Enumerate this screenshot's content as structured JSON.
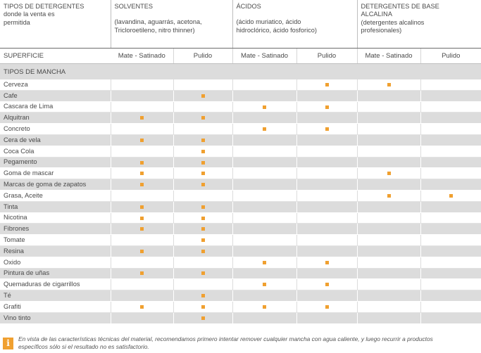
{
  "header": {
    "col0": [
      "TIPOS DE DETERGENTES",
      "donde la venta es",
      "permitida"
    ],
    "solventes": [
      "SOLVENTES",
      "",
      "(lavandina, aguarrás, acetona,",
      "Tricloroetileno, nitro thinner)"
    ],
    "acidos": [
      "ÁCIDOS",
      "",
      "(ácido muriatico, ácido",
      "hidroclórico, ácido fosforico)"
    ],
    "alcalina": [
      "DETERGENTES DE BASE",
      "ALCALINA",
      "(detergentes alcalinos",
      "profesionales)"
    ]
  },
  "subheader": {
    "superficie": "SUPERFICIE",
    "cols": [
      "Mate - Satinado",
      "Pulido",
      "Mate - Satinado",
      "Pulido",
      "Mate - Satinado",
      "Pulido"
    ]
  },
  "category": "TIPOS DE MANCHA",
  "marker_color": "#f0a030",
  "rows": [
    {
      "label": "Cerveza",
      "marks": [
        0,
        0,
        0,
        1,
        1,
        0
      ]
    },
    {
      "label": "Cafe",
      "marks": [
        0,
        1,
        0,
        0,
        0,
        0
      ]
    },
    {
      "label": "Cascara de Lima",
      "marks": [
        0,
        0,
        1,
        1,
        0,
        0
      ]
    },
    {
      "label": "Alquitran",
      "marks": [
        1,
        1,
        0,
        0,
        0,
        0
      ]
    },
    {
      "label": "Concreto",
      "marks": [
        0,
        0,
        1,
        1,
        0,
        0
      ]
    },
    {
      "label": "Cera de vela",
      "marks": [
        1,
        1,
        0,
        0,
        0,
        0
      ]
    },
    {
      "label": "Coca Cola",
      "marks": [
        0,
        1,
        0,
        0,
        0,
        0
      ]
    },
    {
      "label": "Pegamento",
      "marks": [
        1,
        1,
        0,
        0,
        0,
        0
      ]
    },
    {
      "label": "Goma de mascar",
      "marks": [
        1,
        1,
        0,
        0,
        1,
        0
      ]
    },
    {
      "label": "Marcas de goma de zapatos",
      "marks": [
        1,
        1,
        0,
        0,
        0,
        0
      ]
    },
    {
      "label": "Grasa, Aceite",
      "marks": [
        0,
        0,
        0,
        0,
        1,
        1
      ]
    },
    {
      "label": "Tinta",
      "marks": [
        1,
        1,
        0,
        0,
        0,
        0
      ]
    },
    {
      "label": "Nicotina",
      "marks": [
        1,
        1,
        0,
        0,
        0,
        0
      ]
    },
    {
      "label": "Fibrones",
      "marks": [
        1,
        1,
        0,
        0,
        0,
        0
      ]
    },
    {
      "label": "Tomate",
      "marks": [
        0,
        1,
        0,
        0,
        0,
        0
      ]
    },
    {
      "label": "Resina",
      "marks": [
        1,
        1,
        0,
        0,
        0,
        0
      ]
    },
    {
      "label": "Oxido",
      "marks": [
        0,
        0,
        1,
        1,
        0,
        0
      ]
    },
    {
      "label": "Pintura de uñas",
      "marks": [
        1,
        1,
        0,
        0,
        0,
        0
      ]
    },
    {
      "label": "Quemaduras de cigarrillos",
      "marks": [
        0,
        0,
        1,
        1,
        0,
        0
      ]
    },
    {
      "label": "Té",
      "marks": [
        0,
        1,
        0,
        0,
        0,
        0
      ]
    },
    {
      "label": "Grafiti",
      "marks": [
        1,
        1,
        1,
        1,
        0,
        0
      ]
    },
    {
      "label": "Vino tinto",
      "marks": [
        0,
        1,
        0,
        0,
        0,
        0
      ]
    }
  ],
  "note": {
    "icon": "info-icon",
    "line1": "En vista de las características técnicas del material, recomendamos primero intentar remover cualquier mancha con agua caliente, y luego recurrir a productos",
    "line2": "específicos sólo si el resultado no es satisfactorio."
  }
}
